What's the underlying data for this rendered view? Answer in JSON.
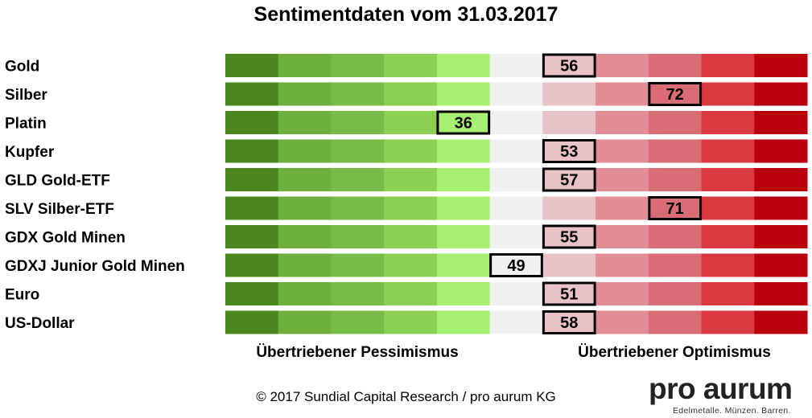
{
  "chart_data": {
    "type": "sentiment-scale",
    "title": "Sentimentdaten vom 31.03.2017",
    "xlim": [
      0,
      100
    ],
    "categories": [
      "Gold",
      "Silber",
      "Platin",
      "Kupfer",
      "GLD Gold-ETF",
      "SLV Silber-ETF",
      "GDX Gold Minen",
      "GDXJ Junior Gold Minen",
      "Euro",
      "US-Dollar"
    ],
    "values": [
      56,
      72,
      36,
      53,
      57,
      71,
      55,
      49,
      51,
      58
    ],
    "scale_colors": [
      "#4a871f",
      "#6fb03d",
      "#79bb47",
      "#8bd053",
      "#a6f071",
      "#f0f0f0",
      "#e8c2c6",
      "#e08d96",
      "#d96c75",
      "#d93a42",
      "#b8000d"
    ],
    "xlabel_left": "Übertriebener Pessimismus",
    "xlabel_right": "Übertriebener Optimismus"
  },
  "footer": {
    "copyright": "© 2017 Sundial Capital Research / pro aurum KG",
    "logo_name": "pro aurum",
    "logo_tagline": "Edelmetalle. Münzen. Barren."
  }
}
